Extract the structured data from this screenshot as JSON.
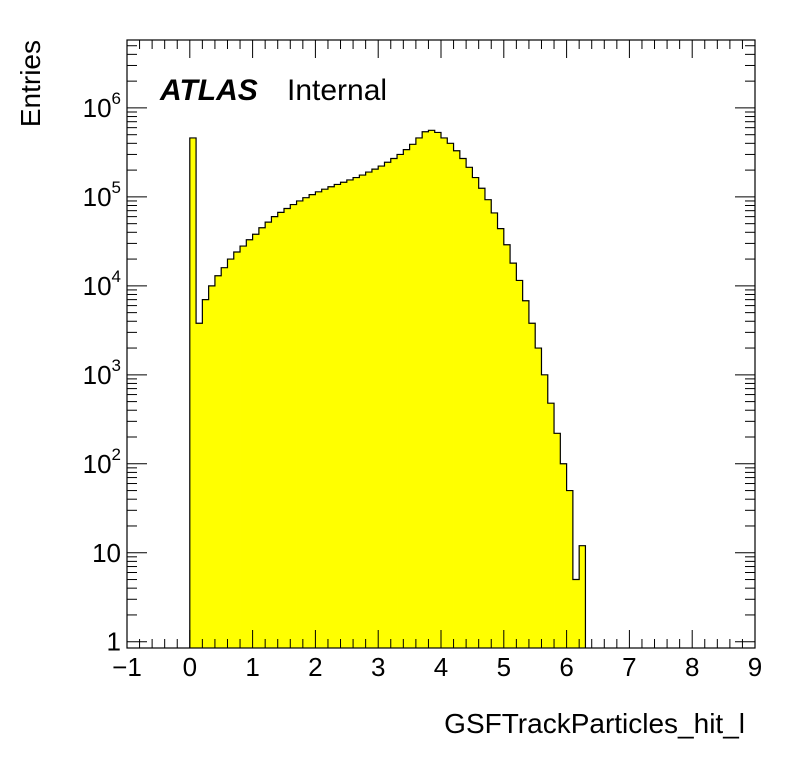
{
  "chart_data": {
    "type": "bar",
    "label_main": "ATLAS",
    "label_sub": "Internal",
    "xlabel": "GSFTrackParticles_hit_l",
    "ylabel": "Entries",
    "xlim": [
      -1,
      9
    ],
    "ylim": [
      0.85,
      5800000
    ],
    "y_scale": "log",
    "grid": false,
    "fill_color": "#ffff00",
    "line_color": "#000000",
    "x_tick_labels": [
      "−1",
      "0",
      "1",
      "2",
      "3",
      "4",
      "5",
      "6",
      "7",
      "8",
      "9"
    ],
    "y_tick_labels": [
      {
        "base": "1",
        "exp": ""
      },
      {
        "base": "10",
        "exp": ""
      },
      {
        "base": "10",
        "exp": "2"
      },
      {
        "base": "10",
        "exp": "3"
      },
      {
        "base": "10",
        "exp": "4"
      },
      {
        "base": "10",
        "exp": "5"
      },
      {
        "base": "10",
        "exp": "6"
      }
    ],
    "bin_width": 0.1,
    "x_start": 0.0,
    "values": [
      460000,
      3800,
      7000,
      10000,
      13000,
      16000,
      20000,
      24000,
      28000,
      33000,
      38000,
      45000,
      52000,
      60000,
      67000,
      74000,
      82000,
      90000,
      98000,
      106000,
      114000,
      122000,
      130000,
      138000,
      146000,
      155000,
      165000,
      176000,
      190000,
      205000,
      222000,
      245000,
      270000,
      300000,
      340000,
      390000,
      460000,
      540000,
      560000,
      530000,
      460000,
      400000,
      330000,
      270000,
      215000,
      165000,
      125000,
      93000,
      66000,
      44000,
      29000,
      18000,
      11500,
      6800,
      3800,
      2000,
      1000,
      480,
      220,
      100,
      50,
      5,
      12
    ]
  }
}
